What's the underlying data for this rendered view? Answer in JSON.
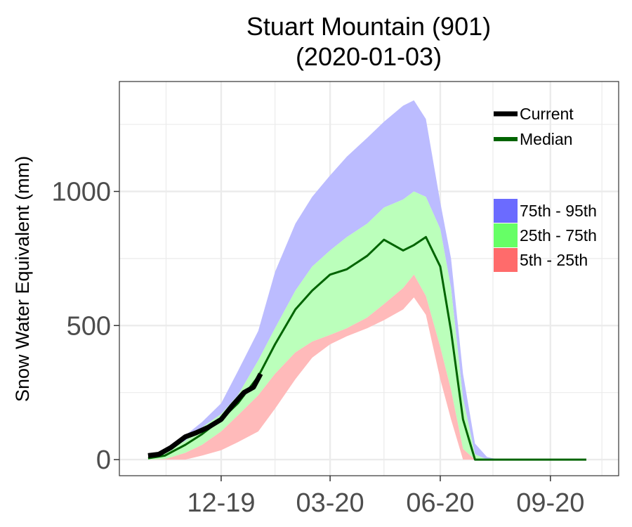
{
  "chart_data": {
    "type": "area",
    "title_line1": "Stuart Mountain (901)",
    "title_line2": "(2020-01-03)",
    "xlabel": "",
    "ylabel": "Snow Water Equivalent (mm)",
    "xlim": [
      "2019-09-07",
      "2020-10-28"
    ],
    "ylim": [
      -60,
      1410
    ],
    "x_ticks": [
      {
        "date": "2019-12-01",
        "label": "12-19"
      },
      {
        "date": "2020-03-01",
        "label": "03-20"
      },
      {
        "date": "2020-06-01",
        "label": "06-20"
      },
      {
        "date": "2020-09-01",
        "label": "09-20"
      }
    ],
    "y_ticks": [
      0,
      500,
      1000
    ],
    "grid": true,
    "legend_position": "right",
    "colors": {
      "current": "#000000",
      "median": "#006400",
      "p75_95": "#6b6bff",
      "p25_75": "#66ff66",
      "p5_25": "#ff6b6b",
      "p75_95_fill": "#bcbcff",
      "p25_75_fill": "#bbffbb",
      "p5_25_fill": "#ffbaba"
    },
    "legend_lines": [
      {
        "key": "current",
        "label": "Current"
      },
      {
        "key": "median",
        "label": "Median"
      }
    ],
    "legend_bands": [
      {
        "key": "p75_95",
        "label": "75th - 95th"
      },
      {
        "key": "p25_75",
        "label": "25th - 75th"
      },
      {
        "key": "p5_25",
        "label": "5th - 25th"
      }
    ],
    "x": [
      "2019-10-01",
      "2019-10-15",
      "2019-11-01",
      "2019-11-15",
      "2019-12-01",
      "2019-12-15",
      "2020-01-01",
      "2020-01-15",
      "2020-02-01",
      "2020-02-15",
      "2020-03-01",
      "2020-03-15",
      "2020-04-01",
      "2020-04-15",
      "2020-05-01",
      "2020-05-10",
      "2020-05-20",
      "2020-06-01",
      "2020-06-10",
      "2020-06-20",
      "2020-06-30",
      "2020-07-10",
      "2020-07-20",
      "2020-08-01",
      "2020-09-01",
      "2020-10-01"
    ],
    "p5": [
      0,
      0,
      0,
      15,
      35,
      65,
      105,
      190,
      300,
      380,
      430,
      460,
      490,
      520,
      560,
      605,
      540,
      300,
      150,
      0,
      0,
      0,
      0,
      0,
      0,
      0
    ],
    "p25": [
      0,
      2,
      25,
      55,
      105,
      165,
      240,
      320,
      400,
      440,
      465,
      490,
      530,
      580,
      640,
      690,
      610,
      420,
      260,
      40,
      0,
      0,
      0,
      0,
      0,
      0
    ],
    "p50": [
      5,
      15,
      55,
      95,
      150,
      210,
      310,
      430,
      560,
      630,
      690,
      710,
      760,
      820,
      780,
      800,
      830,
      720,
      480,
      150,
      0,
      0,
      0,
      0,
      0,
      0
    ],
    "p75": [
      10,
      30,
      70,
      120,
      170,
      240,
      370,
      490,
      630,
      720,
      780,
      830,
      880,
      940,
      970,
      1000,
      980,
      860,
      640,
      230,
      20,
      0,
      0,
      0,
      0,
      0
    ],
    "p95": [
      15,
      35,
      90,
      140,
      210,
      330,
      480,
      700,
      880,
      980,
      1060,
      1130,
      1200,
      1260,
      1320,
      1340,
      1270,
      960,
      750,
      320,
      60,
      10,
      0,
      0,
      0,
      0
    ],
    "current": {
      "x": [
        "2019-10-01",
        "2019-10-10",
        "2019-10-20",
        "2019-11-01",
        "2019-11-10",
        "2019-11-20",
        "2019-12-01",
        "2019-12-10",
        "2019-12-20",
        "2019-12-28",
        "2020-01-03"
      ],
      "y": [
        15,
        20,
        45,
        85,
        100,
        120,
        150,
        200,
        250,
        270,
        320
      ]
    }
  }
}
